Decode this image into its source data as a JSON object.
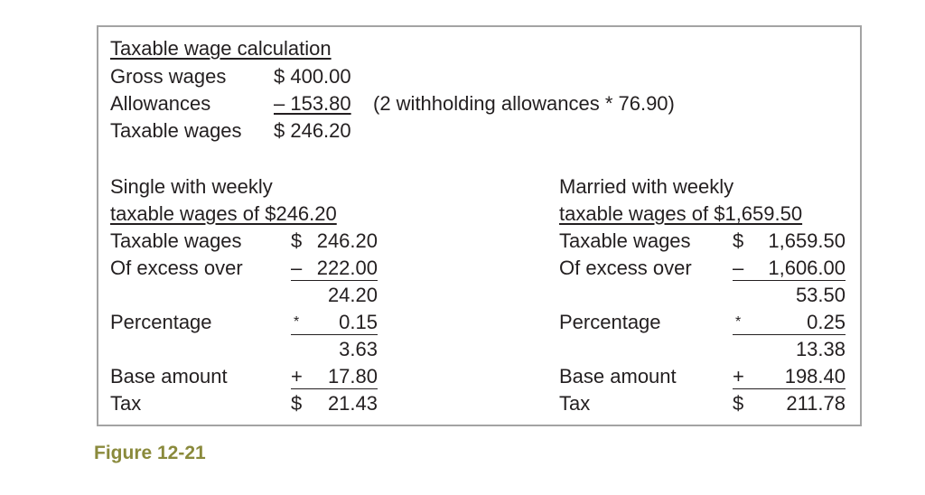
{
  "header": {
    "title": "Taxable wage calculation",
    "rows": [
      {
        "label": "Gross wages",
        "value": "$ 400.00"
      },
      {
        "label": "Allowances",
        "value": "– 153.80",
        "underline": true,
        "note": "(2 withholding allowances * 76.90)"
      },
      {
        "label": "Taxable wages",
        "value": "$ 246.20"
      }
    ]
  },
  "columns": [
    {
      "heading": [
        "Single with weekly",
        "taxable wages of $246.20"
      ],
      "rows": [
        {
          "label": "Taxable wages",
          "op": "$",
          "amount": "246.20"
        },
        {
          "label": "Of excess over",
          "op": "–",
          "amount": "222.00",
          "underline": true
        },
        {
          "amount": "24.20"
        },
        {
          "label": "Percentage",
          "op": "*",
          "amount": "0.15",
          "underline": true
        },
        {
          "amount": "3.63"
        },
        {
          "label": "Base amount",
          "op": "+",
          "amount": "17.80",
          "underline": true
        },
        {
          "label": "Tax",
          "op": "$",
          "amount": "21.43"
        }
      ]
    },
    {
      "heading": [
        "Married with weekly",
        "taxable wages of $1,659.50"
      ],
      "rows": [
        {
          "label": "Taxable wages",
          "op": "$",
          "amount": "1,659.50"
        },
        {
          "label": "Of excess over",
          "op": "–",
          "amount": "1,606.00",
          "underline": true
        },
        {
          "amount": "53.50"
        },
        {
          "label": "Percentage",
          "op": "*",
          "amount": "0.25",
          "underline": true
        },
        {
          "amount": "13.38"
        },
        {
          "label": "Base amount",
          "op": "+",
          "amount": "198.40",
          "underline": true
        },
        {
          "label": "Tax",
          "op": "$",
          "amount": "211.78"
        }
      ]
    }
  ],
  "caption": "Figure 12-21"
}
